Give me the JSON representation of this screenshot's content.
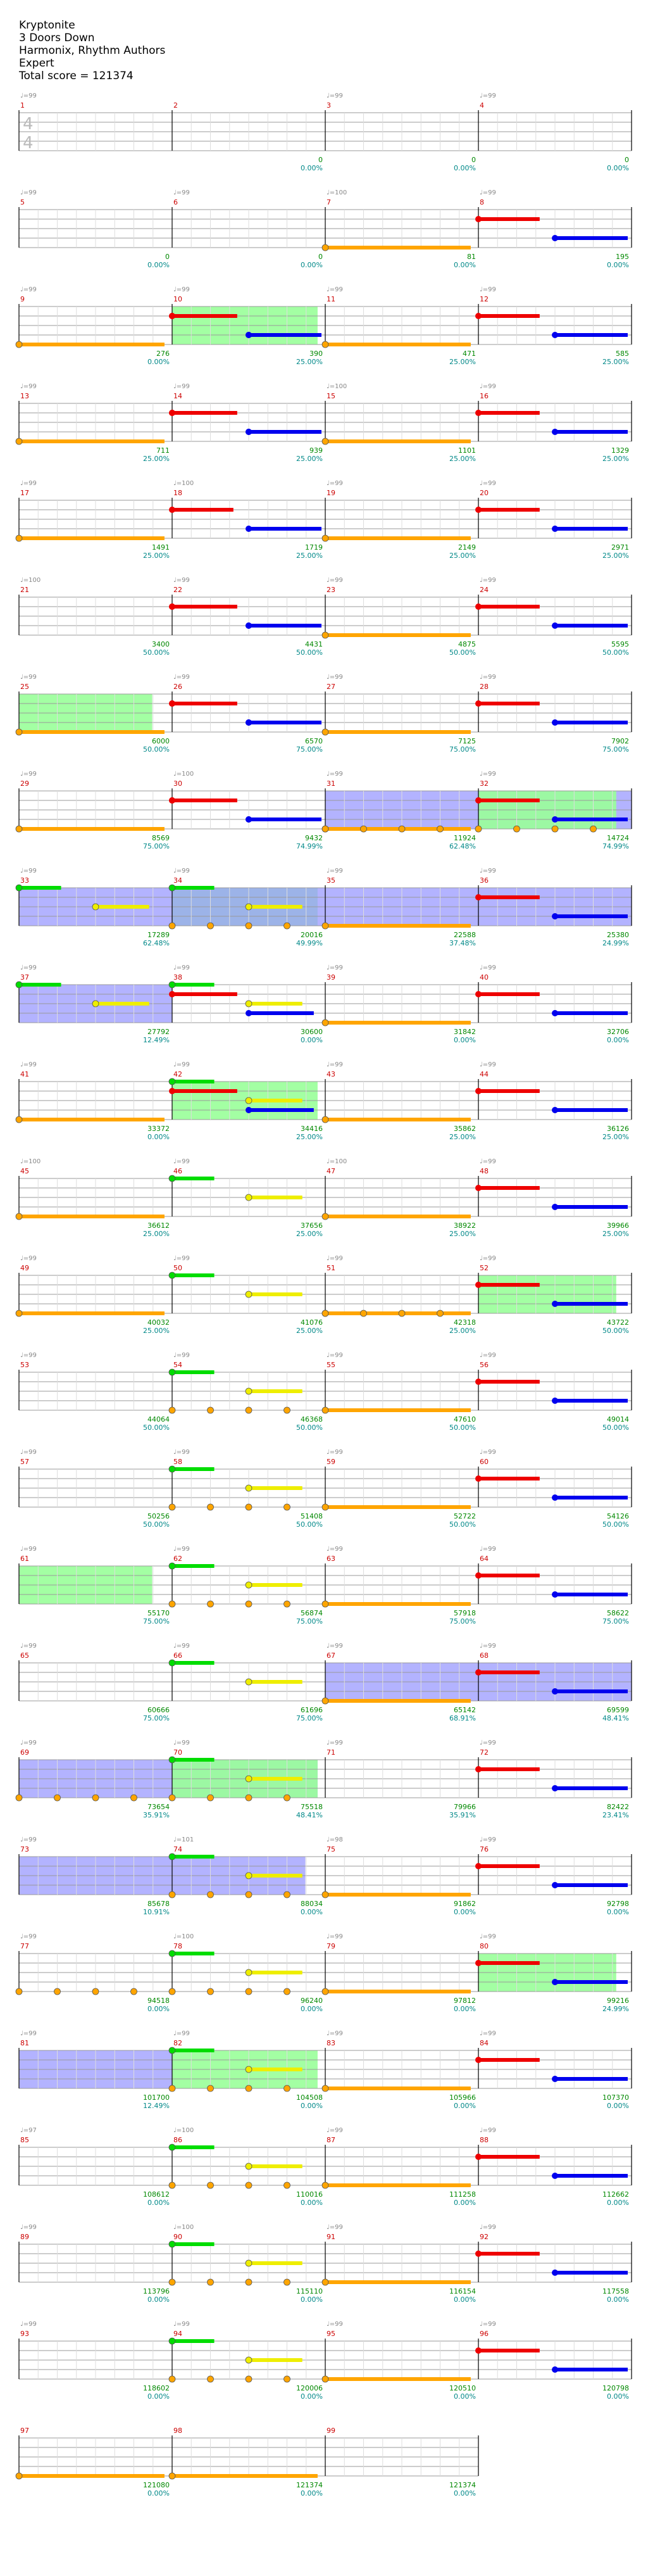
{
  "song": {
    "title": "Kryptonite",
    "artist": "3 Doors Down",
    "authors": "Harmonix, Rhythm Authors",
    "difficulty": "Expert",
    "total_score": "Total score = 121374"
  },
  "colors": {
    "green": "#00dd00",
    "red": "#ee0000",
    "yellow": "#eeee00",
    "blue": "#0000ee",
    "orange": "#ffa500",
    "star_power": "#99ff99",
    "solo": "#9999ff",
    "score_green": "#008800",
    "percent_teal": "#008888"
  },
  "time_signature": [
    "4",
    "4"
  ],
  "measures": [
    {
      "n": "1",
      "tempo": "♩=99",
      "score": "",
      "pct": ""
    },
    {
      "n": "2",
      "tempo": "",
      "score": "0",
      "pct": "0.00%"
    },
    {
      "n": "3",
      "tempo": "♩=99",
      "score": "0",
      "pct": "0.00%"
    },
    {
      "n": "4",
      "tempo": "♩=99",
      "score": "0",
      "pct": "0.00%"
    },
    {
      "n": "5",
      "tempo": "♩=99",
      "score": "0",
      "pct": "0.00%"
    },
    {
      "n": "6",
      "tempo": "♩=99",
      "score": "0",
      "pct": "0.00%"
    },
    {
      "n": "7",
      "tempo": "♩=100",
      "score": "81",
      "pct": "0.00%"
    },
    {
      "n": "8",
      "tempo": "♩=99",
      "score": "195",
      "pct": "0.00%"
    },
    {
      "n": "9",
      "tempo": "♩=99",
      "score": "276",
      "pct": "0.00%"
    },
    {
      "n": "10",
      "tempo": "♩=99",
      "score": "390",
      "pct": "25.00%"
    },
    {
      "n": "11",
      "tempo": "♩=99",
      "score": "471",
      "pct": "25.00%"
    },
    {
      "n": "12",
      "tempo": "♩=99",
      "score": "585",
      "pct": "25.00%"
    },
    {
      "n": "13",
      "tempo": "♩=99",
      "score": "711",
      "pct": "25.00%"
    },
    {
      "n": "14",
      "tempo": "♩=99",
      "score": "939",
      "pct": "25.00%"
    },
    {
      "n": "15",
      "tempo": "♩=100",
      "score": "1101",
      "pct": "25.00%"
    },
    {
      "n": "16",
      "tempo": "♩=99",
      "score": "1329",
      "pct": "25.00%"
    },
    {
      "n": "17",
      "tempo": "♩=99",
      "score": "1491",
      "pct": "25.00%"
    },
    {
      "n": "18",
      "tempo": "♩=100",
      "score": "1719",
      "pct": "25.00%"
    },
    {
      "n": "19",
      "tempo": "♩=99",
      "score": "2149",
      "pct": "25.00%"
    },
    {
      "n": "20",
      "tempo": "♩=99",
      "score": "2971",
      "pct": "25.00%"
    },
    {
      "n": "21",
      "tempo": "♩=100",
      "score": "3400",
      "pct": "50.00%"
    },
    {
      "n": "22",
      "tempo": "♩=99",
      "score": "4431",
      "pct": "50.00%"
    },
    {
      "n": "23",
      "tempo": "♩=99",
      "score": "4875",
      "pct": "50.00%"
    },
    {
      "n": "24",
      "tempo": "♩=99",
      "score": "5595",
      "pct": "50.00%"
    },
    {
      "n": "25",
      "tempo": "♩=99",
      "score": "6000",
      "pct": "50.00%"
    },
    {
      "n": "26",
      "tempo": "♩=99",
      "score": "6570",
      "pct": "75.00%"
    },
    {
      "n": "27",
      "tempo": "♩=99",
      "score": "7125",
      "pct": "75.00%"
    },
    {
      "n": "28",
      "tempo": "♩=99",
      "score": "7902",
      "pct": "75.00%"
    },
    {
      "n": "29",
      "tempo": "♩=99",
      "score": "8569",
      "pct": "75.00%"
    },
    {
      "n": "30",
      "tempo": "♩=100",
      "score": "9432",
      "pct": "74.99%"
    },
    {
      "n": "31",
      "tempo": "♩=99",
      "score": "11924",
      "pct": "62.48%"
    },
    {
      "n": "32",
      "tempo": "♩=99",
      "score": "14724",
      "pct": "74.99%"
    },
    {
      "n": "33",
      "tempo": "♩=99",
      "score": "17289",
      "pct": "62.48%"
    },
    {
      "n": "34",
      "tempo": "♩=99",
      "score": "20016",
      "pct": "49.99%"
    },
    {
      "n": "35",
      "tempo": "♩=99",
      "score": "22588",
      "pct": "37.48%"
    },
    {
      "n": "36",
      "tempo": "♩=99",
      "score": "25380",
      "pct": "24.99%"
    },
    {
      "n": "37",
      "tempo": "♩=99",
      "score": "27792",
      "pct": "12.49%"
    },
    {
      "n": "38",
      "tempo": "♩=99",
      "score": "30600",
      "pct": "0.00%"
    },
    {
      "n": "39",
      "tempo": "♩=99",
      "score": "31842",
      "pct": "0.00%"
    },
    {
      "n": "40",
      "tempo": "♩=99",
      "score": "32706",
      "pct": "0.00%"
    },
    {
      "n": "41",
      "tempo": "♩=99",
      "score": "33372",
      "pct": "0.00%"
    },
    {
      "n": "42",
      "tempo": "♩=99",
      "score": "34416",
      "pct": "25.00%"
    },
    {
      "n": "43",
      "tempo": "♩=99",
      "score": "35862",
      "pct": "25.00%"
    },
    {
      "n": "44",
      "tempo": "♩=99",
      "score": "36126",
      "pct": "25.00%"
    },
    {
      "n": "45",
      "tempo": "♩=100",
      "score": "36612",
      "pct": "25.00%"
    },
    {
      "n": "46",
      "tempo": "♩=99",
      "score": "37656",
      "pct": "25.00%"
    },
    {
      "n": "47",
      "tempo": "♩=100",
      "score": "38922",
      "pct": "25.00%"
    },
    {
      "n": "48",
      "tempo": "♩=99",
      "score": "39966",
      "pct": "25.00%"
    },
    {
      "n": "49",
      "tempo": "♩=99",
      "score": "40032",
      "pct": "25.00%"
    },
    {
      "n": "50",
      "tempo": "♩=99",
      "score": "41076",
      "pct": "25.00%"
    },
    {
      "n": "51",
      "tempo": "♩=99",
      "score": "42318",
      "pct": "25.00%"
    },
    {
      "n": "52",
      "tempo": "♩=99",
      "score": "43722",
      "pct": "50.00%"
    },
    {
      "n": "53",
      "tempo": "♩=99",
      "score": "44064",
      "pct": "50.00%"
    },
    {
      "n": "54",
      "tempo": "♩=99",
      "score": "46368",
      "pct": "50.00%"
    },
    {
      "n": "55",
      "tempo": "♩=99",
      "score": "47610",
      "pct": "50.00%"
    },
    {
      "n": "56",
      "tempo": "♩=99",
      "score": "49014",
      "pct": "50.00%"
    },
    {
      "n": "57",
      "tempo": "♩=99",
      "score": "50256",
      "pct": "50.00%"
    },
    {
      "n": "58",
      "tempo": "♩=99",
      "score": "51408",
      "pct": "50.00%"
    },
    {
      "n": "59",
      "tempo": "♩=99",
      "score": "52722",
      "pct": "50.00%"
    },
    {
      "n": "60",
      "tempo": "♩=99",
      "score": "54126",
      "pct": "50.00%"
    },
    {
      "n": "61",
      "tempo": "♩=99",
      "score": "55170",
      "pct": "75.00%"
    },
    {
      "n": "62",
      "tempo": "♩=99",
      "score": "56874",
      "pct": "75.00%"
    },
    {
      "n": "63",
      "tempo": "♩=99",
      "score": "57918",
      "pct": "75.00%"
    },
    {
      "n": "64",
      "tempo": "♩=99",
      "score": "58622",
      "pct": "75.00%"
    },
    {
      "n": "65",
      "tempo": "♩=99",
      "score": "60666",
      "pct": "75.00%"
    },
    {
      "n": "66",
      "tempo": "♩=99",
      "score": "61696",
      "pct": "75.00%"
    },
    {
      "n": "67",
      "tempo": "♩=99",
      "score": "65142",
      "pct": "68.91%"
    },
    {
      "n": "68",
      "tempo": "♩=99",
      "score": "69599",
      "pct": "48.41%"
    },
    {
      "n": "69",
      "tempo": "♩=99",
      "score": "73654",
      "pct": "35.91%"
    },
    {
      "n": "70",
      "tempo": "♩=99",
      "score": "75518",
      "pct": "48.41%"
    },
    {
      "n": "71",
      "tempo": "♩=99",
      "score": "79966",
      "pct": "35.91%"
    },
    {
      "n": "72",
      "tempo": "♩=99",
      "score": "82422",
      "pct": "23.41%"
    },
    {
      "n": "73",
      "tempo": "♩=99",
      "score": "85678",
      "pct": "10.91%"
    },
    {
      "n": "74",
      "tempo": "♩=101",
      "score": "88034",
      "pct": "0.00%"
    },
    {
      "n": "75",
      "tempo": "♩=98",
      "score": "91862",
      "pct": "0.00%"
    },
    {
      "n": "76",
      "tempo": "♩=99",
      "score": "92798",
      "pct": "0.00%"
    },
    {
      "n": "77",
      "tempo": "♩=99",
      "score": "94518",
      "pct": "0.00%"
    },
    {
      "n": "78",
      "tempo": "♩=100",
      "score": "96240",
      "pct": "0.00%"
    },
    {
      "n": "79",
      "tempo": "♩=99",
      "score": "97812",
      "pct": "0.00%"
    },
    {
      "n": "80",
      "tempo": "♩=99",
      "score": "99216",
      "pct": "24.99%"
    },
    {
      "n": "81",
      "tempo": "♩=99",
      "score": "101700",
      "pct": "12.49%"
    },
    {
      "n": "82",
      "tempo": "♩=99",
      "score": "104508",
      "pct": "0.00%"
    },
    {
      "n": "83",
      "tempo": "♩=99",
      "score": "105966",
      "pct": "0.00%"
    },
    {
      "n": "84",
      "tempo": "♩=99",
      "score": "107370",
      "pct": "0.00%"
    },
    {
      "n": "85",
      "tempo": "♩=97",
      "score": "108612",
      "pct": "0.00%"
    },
    {
      "n": "86",
      "tempo": "♩=100",
      "score": "110016",
      "pct": "0.00%"
    },
    {
      "n": "87",
      "tempo": "♩=99",
      "score": "111258",
      "pct": "0.00%"
    },
    {
      "n": "88",
      "tempo": "♩=99",
      "score": "112662",
      "pct": "0.00%"
    },
    {
      "n": "89",
      "tempo": "♩=99",
      "score": "113796",
      "pct": "0.00%"
    },
    {
      "n": "90",
      "tempo": "♩=100",
      "score": "115110",
      "pct": "0.00%"
    },
    {
      "n": "91",
      "tempo": "♩=99",
      "score": "116154",
      "pct": "0.00%"
    },
    {
      "n": "92",
      "tempo": "♩=99",
      "score": "117558",
      "pct": "0.00%"
    },
    {
      "n": "93",
      "tempo": "♩=99",
      "score": "118602",
      "pct": "0.00%"
    },
    {
      "n": "94",
      "tempo": "♩=99",
      "score": "120006",
      "pct": "0.00%"
    },
    {
      "n": "95",
      "tempo": "♩=99",
      "score": "120510",
      "pct": "0.00%"
    },
    {
      "n": "96",
      "tempo": "♩=99",
      "score": "120798",
      "pct": "0.00%"
    },
    {
      "n": "97",
      "tempo": "",
      "score": "121080",
      "pct": "0.00%"
    },
    {
      "n": "98",
      "tempo": "",
      "score": "121374",
      "pct": "0.00%"
    },
    {
      "n": "99",
      "tempo": "",
      "score": "121374",
      "pct": "0.00%"
    }
  ]
}
